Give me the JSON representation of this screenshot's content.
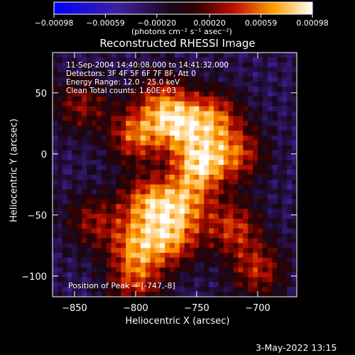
{
  "chart_data": {
    "type": "heatmap",
    "title": "Reconstructed RHESSI Image",
    "xlabel": "Heliocentric X (arcsec)",
    "ylabel": "Heliocentric Y (arcsec)",
    "xlim": [
      -868,
      -668
    ],
    "ylim": [
      -117,
      83
    ],
    "x_ticks": [
      -850,
      -800,
      -750,
      -700
    ],
    "y_ticks": [
      50,
      0,
      -50,
      -100
    ],
    "x_tick_labels": [
      "−850",
      "−800",
      "−750",
      "−700"
    ],
    "y_tick_labels": [
      "50",
      "0",
      "−50",
      "−100"
    ],
    "colorbar": {
      "range": [
        -0.00098,
        0.00098
      ],
      "ticks": [
        -0.00098,
        -0.00059,
        -0.0002,
        0.0002,
        0.00059,
        0.00098
      ],
      "tick_labels": [
        "−0.00098",
        "−0.00059",
        "−0.00020",
        "0.00020",
        "0.00059",
        "0.00098"
      ],
      "units": "(photons cm⁻² s⁻¹ asec⁻²)"
    },
    "annotations": {
      "time": "11-Sep-2004 14:40:08.000 to 14:41:32.000",
      "detectors": "Detectors: 3F 4F 5F 6F 7F 8F, Att 0",
      "energy": "Energy Range: 12.0 - 25.0 keV",
      "clean": "Clean     Total counts: 1.60E+03",
      "peak": "Position of Peak = [-747,-8]"
    },
    "peak": [
      -747,
      -8
    ],
    "sources": [
      {
        "x": -747,
        "y": -8,
        "amp": 0.00098
      },
      {
        "x": -765,
        "y": 25,
        "amp": 0.00085
      },
      {
        "x": -800,
        "y": 15,
        "amp": 0.00075
      },
      {
        "x": -735,
        "y": 30,
        "amp": 0.0007
      },
      {
        "x": -790,
        "y": -40,
        "amp": 0.0008
      },
      {
        "x": -770,
        "y": -70,
        "amp": 0.00075
      },
      {
        "x": -800,
        "y": -75,
        "amp": 0.0007
      },
      {
        "x": -720,
        "y": -60,
        "amp": 0.00065
      },
      {
        "x": -700,
        "y": -95,
        "amp": 0.0006
      },
      {
        "x": -800,
        "y": -105,
        "amp": 0.0006
      },
      {
        "x": -835,
        "y": -55,
        "amp": 0.0005
      },
      {
        "x": -845,
        "y": 40,
        "amp": 0.0005
      },
      {
        "x": -760,
        "y": -40,
        "amp": 0.0007
      },
      {
        "x": -715,
        "y": 0,
        "amp": 0.0006
      },
      {
        "x": -780,
        "y": 45,
        "amp": 0.0005
      }
    ]
  },
  "footer": {
    "date": "3-May-2022 13:15"
  }
}
